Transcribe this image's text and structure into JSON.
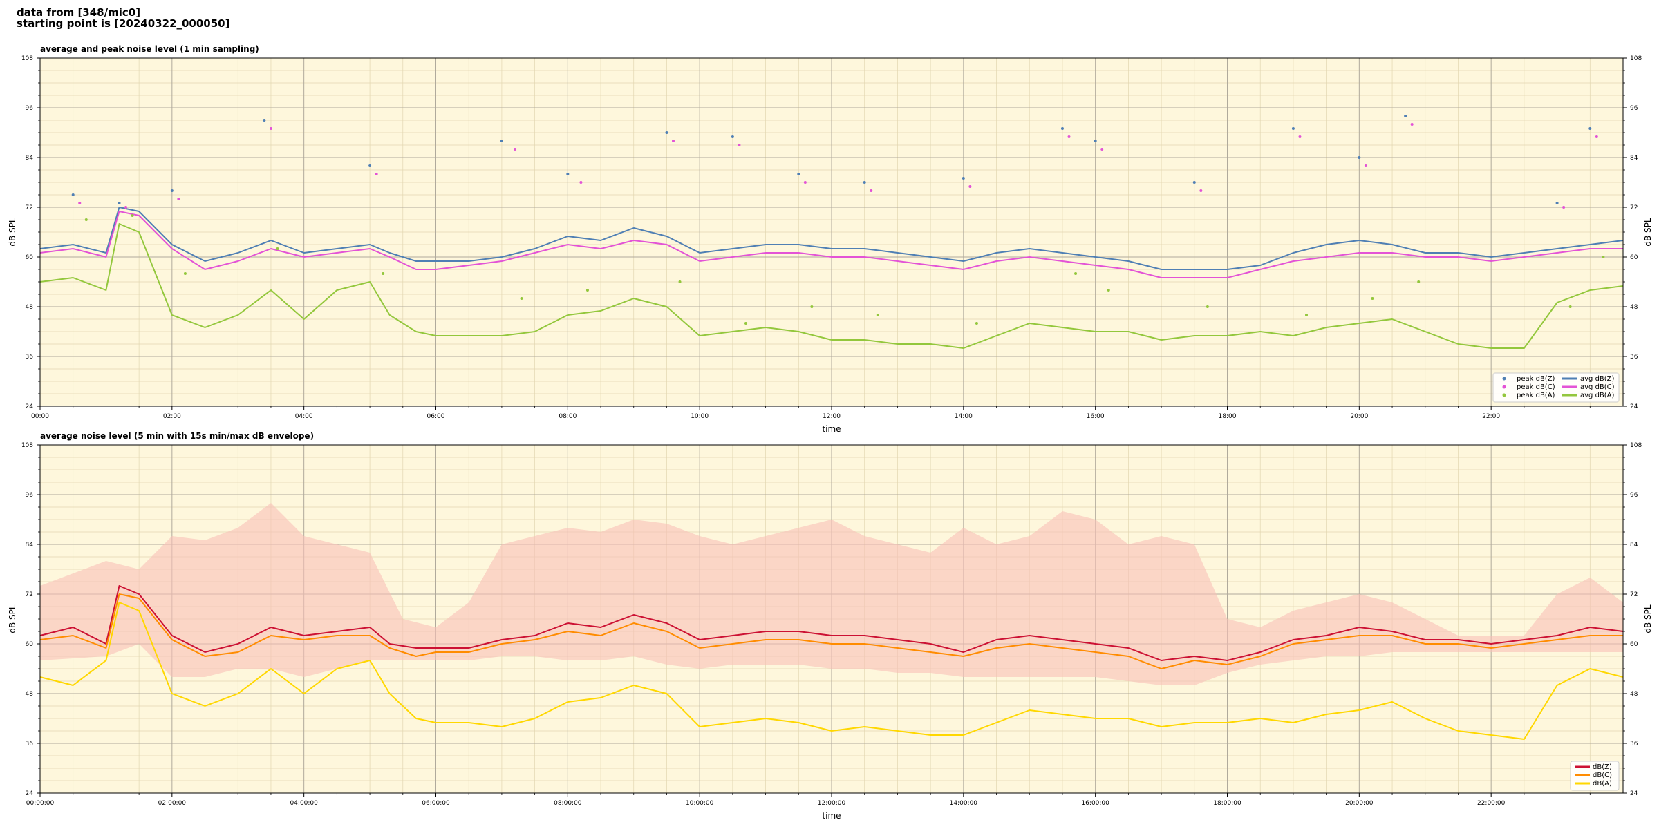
{
  "header": {
    "line1": "data from [348/mic0]",
    "line2": "starting point is [20240322_000050]"
  },
  "colors": {
    "background": "#fef7dc",
    "z_top": "#4f7fb4",
    "c_top": "#e353d6",
    "a_top": "#93c73c",
    "z_bottom": "#cc1133",
    "c_bottom": "#ff8c00",
    "a_bottom": "#ffd700",
    "envelope": "#f8c0b8"
  },
  "chart_data": [
    {
      "type": "line",
      "title": "average and peak noise level (1 min sampling)",
      "xlabel": "time",
      "ylabel": "dB SPL",
      "ylabel_right": "dB SPL",
      "xlim": [
        0,
        24
      ],
      "ylim": [
        24,
        108
      ],
      "y_ticks": [
        24,
        36,
        48,
        60,
        72,
        84,
        96,
        108
      ],
      "x_tick_labels": [
        "00:00",
        "02:00",
        "04:00",
        "06:00",
        "08:00",
        "10:00",
        "12:00",
        "14:00",
        "16:00",
        "18:00",
        "20:00",
        "22:00"
      ],
      "grid": true,
      "legend_position": "bottom-right",
      "legend": [
        {
          "label": "peak dB(Z)",
          "kind": "dot",
          "color": "#4f7fb4"
        },
        {
          "label": "avg dB(Z)",
          "kind": "line",
          "color": "#4f7fb4"
        },
        {
          "label": "peak dB(C)",
          "kind": "dot",
          "color": "#e353d6"
        },
        {
          "label": "avg dB(C)",
          "kind": "line",
          "color": "#e353d6"
        },
        {
          "label": "peak dB(A)",
          "kind": "dot",
          "color": "#93c73c"
        },
        {
          "label": "avg dB(A)",
          "kind": "line",
          "color": "#93c73c"
        }
      ],
      "series": [
        {
          "name": "avg dB(Z)",
          "kind": "line",
          "color": "#4f7fb4",
          "x": [
            0,
            0.5,
            1,
            1.2,
            1.5,
            2,
            2.5,
            3,
            3.5,
            4,
            4.5,
            5,
            5.3,
            5.7,
            6,
            6.5,
            7,
            7.5,
            8,
            8.5,
            9,
            9.5,
            10,
            10.5,
            11,
            11.5,
            12,
            12.5,
            13,
            13.5,
            14,
            14.5,
            15,
            15.5,
            16,
            16.5,
            17,
            17.5,
            18,
            18.5,
            19,
            19.5,
            20,
            20.5,
            21,
            21.5,
            22,
            22.5,
            23,
            23.5,
            24
          ],
          "y": [
            62,
            63,
            61,
            72,
            71,
            63,
            59,
            61,
            64,
            61,
            62,
            63,
            61,
            59,
            59,
            59,
            60,
            62,
            65,
            64,
            67,
            65,
            61,
            62,
            63,
            63,
            62,
            62,
            61,
            60,
            59,
            61,
            62,
            61,
            60,
            59,
            57,
            57,
            57,
            58,
            61,
            63,
            64,
            63,
            61,
            61,
            60,
            61,
            62,
            63,
            64
          ]
        },
        {
          "name": "avg dB(C)",
          "kind": "line",
          "color": "#e353d6",
          "x": [
            0,
            0.5,
            1,
            1.2,
            1.5,
            2,
            2.5,
            3,
            3.5,
            4,
            4.5,
            5,
            5.3,
            5.7,
            6,
            6.5,
            7,
            7.5,
            8,
            8.5,
            9,
            9.5,
            10,
            10.5,
            11,
            11.5,
            12,
            12.5,
            13,
            13.5,
            14,
            14.5,
            15,
            15.5,
            16,
            16.5,
            17,
            17.5,
            18,
            18.5,
            19,
            19.5,
            20,
            20.5,
            21,
            21.5,
            22,
            22.5,
            23,
            23.5,
            24
          ],
          "y": [
            61,
            62,
            60,
            71,
            70,
            62,
            57,
            59,
            62,
            60,
            61,
            62,
            60,
            57,
            57,
            58,
            59,
            61,
            63,
            62,
            64,
            63,
            59,
            60,
            61,
            61,
            60,
            60,
            59,
            58,
            57,
            59,
            60,
            59,
            58,
            57,
            55,
            55,
            55,
            57,
            59,
            60,
            61,
            61,
            60,
            60,
            59,
            60,
            61,
            62,
            62
          ]
        },
        {
          "name": "avg dB(A)",
          "kind": "line",
          "color": "#93c73c",
          "x": [
            0,
            0.5,
            1,
            1.2,
            1.5,
            2,
            2.5,
            3,
            3.5,
            4,
            4.5,
            5,
            5.3,
            5.7,
            6,
            6.5,
            7,
            7.5,
            8,
            8.5,
            9,
            9.5,
            10,
            10.5,
            11,
            11.5,
            12,
            12.5,
            13,
            13.5,
            14,
            14.5,
            15,
            15.5,
            16,
            16.5,
            17,
            17.5,
            18,
            18.5,
            19,
            19.5,
            20,
            20.5,
            21,
            21.5,
            22,
            22.5,
            23,
            23.5,
            24
          ],
          "y": [
            54,
            55,
            52,
            68,
            66,
            46,
            43,
            46,
            52,
            45,
            52,
            54,
            46,
            42,
            41,
            41,
            41,
            42,
            46,
            47,
            50,
            48,
            41,
            42,
            43,
            42,
            40,
            40,
            39,
            39,
            38,
            41,
            44,
            43,
            42,
            42,
            40,
            41,
            41,
            42,
            41,
            43,
            44,
            45,
            42,
            39,
            38,
            38,
            49,
            52,
            53
          ]
        },
        {
          "name": "peak dB(Z)",
          "kind": "dot",
          "color": "#4f7fb4",
          "x": [
            0.5,
            1.2,
            2,
            3.4,
            5,
            7,
            8,
            9.5,
            10.5,
            11.5,
            12.5,
            14,
            15.5,
            16,
            17.5,
            19,
            20,
            20.7,
            23,
            23.5
          ],
          "y": [
            75,
            73,
            76,
            93,
            82,
            88,
            80,
            90,
            89,
            80,
            78,
            79,
            91,
            88,
            78,
            91,
            84,
            94,
            73,
            91
          ]
        },
        {
          "name": "peak dB(C)",
          "kind": "dot",
          "color": "#e353d6",
          "x": [
            0.6,
            1.3,
            2.1,
            3.5,
            5.1,
            7.2,
            8.2,
            9.6,
            10.6,
            11.6,
            12.6,
            14.1,
            15.6,
            16.1,
            17.6,
            19.1,
            20.1,
            20.8,
            23.1,
            23.6
          ],
          "y": [
            73,
            72,
            74,
            91,
            80,
            86,
            78,
            88,
            87,
            78,
            76,
            77,
            89,
            86,
            76,
            89,
            82,
            92,
            72,
            89
          ]
        },
        {
          "name": "peak dB(A)",
          "kind": "dot",
          "color": "#93c73c",
          "x": [
            0.7,
            1.4,
            2.2,
            3.6,
            5.2,
            7.3,
            8.3,
            9.7,
            10.7,
            11.7,
            12.7,
            14.2,
            15.7,
            16.2,
            17.7,
            19.2,
            20.2,
            20.9,
            23.2,
            23.7
          ],
          "y": [
            69,
            70,
            56,
            62,
            56,
            50,
            52,
            54,
            44,
            48,
            46,
            44,
            56,
            52,
            48,
            46,
            50,
            54,
            48,
            60
          ]
        }
      ]
    },
    {
      "type": "line",
      "title": "average noise level (5 min with 15s min/max dB envelope)",
      "xlabel": "time",
      "ylabel": "dB SPL",
      "ylabel_right": "dB SPL",
      "xlim": [
        0,
        24
      ],
      "ylim": [
        24,
        108
      ],
      "y_ticks": [
        24,
        36,
        48,
        60,
        72,
        84,
        96,
        108
      ],
      "x_tick_labels": [
        "00:00:00",
        "02:00:00",
        "04:00:00",
        "06:00:00",
        "08:00:00",
        "10:00:00",
        "12:00:00",
        "14:00:00",
        "16:00:00",
        "18:00:00",
        "20:00:00",
        "22:00:00"
      ],
      "grid": true,
      "legend_position": "bottom-right",
      "legend": [
        {
          "label": "dB(Z)",
          "kind": "line",
          "color": "#cc1133"
        },
        {
          "label": "dB(C)",
          "kind": "line",
          "color": "#ff8c00"
        },
        {
          "label": "dB(A)",
          "kind": "line",
          "color": "#ffd700"
        }
      ],
      "series": [
        {
          "name": "envelope",
          "kind": "band",
          "color": "#f8c0b8",
          "x": [
            0,
            1,
            1.5,
            2,
            2.5,
            3,
            3.5,
            4,
            4.5,
            5,
            5.5,
            6,
            6.5,
            7,
            7.5,
            8,
            8.5,
            9,
            9.5,
            10,
            10.5,
            11,
            11.5,
            12,
            12.5,
            13,
            13.5,
            14,
            14.5,
            15,
            15.5,
            16,
            16.5,
            17,
            17.5,
            18,
            18.5,
            19,
            19.5,
            20,
            20.5,
            21,
            21.5,
            22,
            22.5,
            23,
            23.5,
            24
          ],
          "high": [
            74,
            80,
            78,
            86,
            85,
            88,
            94,
            86,
            84,
            82,
            66,
            64,
            70,
            84,
            86,
            88,
            87,
            90,
            89,
            86,
            84,
            86,
            88,
            90,
            86,
            84,
            82,
            88,
            84,
            86,
            92,
            90,
            84,
            86,
            84,
            66,
            64,
            68,
            70,
            72,
            70,
            66,
            62,
            62,
            62,
            72,
            76,
            70
          ],
          "low": [
            56,
            57,
            60,
            52,
            52,
            54,
            54,
            52,
            54,
            56,
            56,
            56,
            56,
            57,
            57,
            56,
            56,
            57,
            55,
            54,
            55,
            55,
            55,
            54,
            54,
            53,
            53,
            52,
            52,
            52,
            52,
            52,
            51,
            50,
            50,
            53,
            55,
            56,
            57,
            57,
            58,
            58,
            58,
            58,
            58,
            58,
            58,
            58
          ]
        },
        {
          "name": "dB(Z)",
          "kind": "line",
          "color": "#cc1133",
          "x": [
            0,
            0.5,
            1,
            1.2,
            1.5,
            2,
            2.5,
            3,
            3.5,
            4,
            4.5,
            5,
            5.3,
            5.7,
            6,
            6.5,
            7,
            7.5,
            8,
            8.5,
            9,
            9.5,
            10,
            10.5,
            11,
            11.5,
            12,
            12.5,
            13,
            13.5,
            14,
            14.5,
            15,
            15.5,
            16,
            16.5,
            17,
            17.5,
            18,
            18.5,
            19,
            19.5,
            20,
            20.5,
            21,
            21.5,
            22,
            22.5,
            23,
            23.5,
            24
          ],
          "y": [
            62,
            64,
            60,
            74,
            72,
            62,
            58,
            60,
            64,
            62,
            63,
            64,
            60,
            59,
            59,
            59,
            61,
            62,
            65,
            64,
            67,
            65,
            61,
            62,
            63,
            63,
            62,
            62,
            61,
            60,
            58,
            61,
            62,
            61,
            60,
            59,
            56,
            57,
            56,
            58,
            61,
            62,
            64,
            63,
            61,
            61,
            60,
            61,
            62,
            64,
            63
          ]
        },
        {
          "name": "dB(C)",
          "kind": "line",
          "color": "#ff8c00",
          "x": [
            0,
            0.5,
            1,
            1.2,
            1.5,
            2,
            2.5,
            3,
            3.5,
            4,
            4.5,
            5,
            5.3,
            5.7,
            6,
            6.5,
            7,
            7.5,
            8,
            8.5,
            9,
            9.5,
            10,
            10.5,
            11,
            11.5,
            12,
            12.5,
            13,
            13.5,
            14,
            14.5,
            15,
            15.5,
            16,
            16.5,
            17,
            17.5,
            18,
            18.5,
            19,
            19.5,
            20,
            20.5,
            21,
            21.5,
            22,
            22.5,
            23,
            23.5,
            24
          ],
          "y": [
            61,
            62,
            59,
            72,
            71,
            61,
            57,
            58,
            62,
            61,
            62,
            62,
            59,
            57,
            58,
            58,
            60,
            61,
            63,
            62,
            65,
            63,
            59,
            60,
            61,
            61,
            60,
            60,
            59,
            58,
            57,
            59,
            60,
            59,
            58,
            57,
            54,
            56,
            55,
            57,
            60,
            61,
            62,
            62,
            60,
            60,
            59,
            60,
            61,
            62,
            62
          ]
        },
        {
          "name": "dB(A)",
          "kind": "line",
          "color": "#ffd700",
          "x": [
            0,
            0.5,
            1,
            1.2,
            1.5,
            2,
            2.5,
            3,
            3.5,
            4,
            4.5,
            5,
            5.3,
            5.7,
            6,
            6.5,
            7,
            7.5,
            8,
            8.5,
            9,
            9.5,
            10,
            10.5,
            11,
            11.5,
            12,
            12.5,
            13,
            13.5,
            14,
            14.5,
            15,
            15.5,
            16,
            16.5,
            17,
            17.5,
            18,
            18.5,
            19,
            19.5,
            20,
            20.5,
            21,
            21.5,
            22,
            22.5,
            23,
            23.5,
            24
          ],
          "y": [
            52,
            50,
            56,
            70,
            68,
            48,
            45,
            48,
            54,
            48,
            54,
            56,
            48,
            42,
            41,
            41,
            40,
            42,
            46,
            47,
            50,
            48,
            40,
            41,
            42,
            41,
            39,
            40,
            39,
            38,
            38,
            41,
            44,
            43,
            42,
            42,
            40,
            41,
            41,
            42,
            41,
            43,
            44,
            46,
            42,
            39,
            38,
            37,
            50,
            54,
            52
          ]
        }
      ]
    }
  ]
}
